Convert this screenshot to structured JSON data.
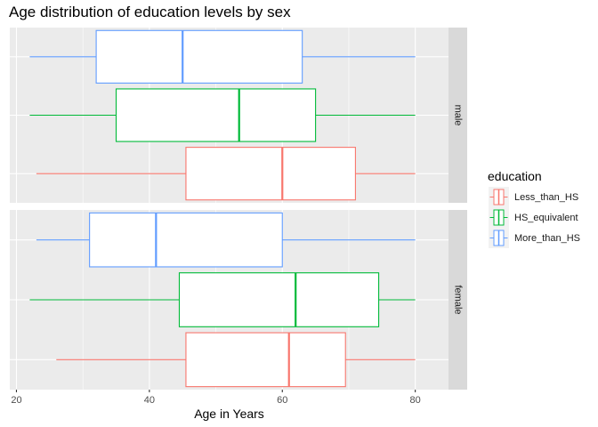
{
  "chart_data": {
    "type": "boxplot",
    "title": "Age distribution of education levels by sex",
    "xlabel": "Age in Years",
    "ylabel": "",
    "xlim": [
      19,
      85
    ],
    "x_ticks": [
      20,
      40,
      60,
      80
    ],
    "grid": true,
    "legend": {
      "title": "education",
      "position": "right",
      "entries": [
        "Less_than_HS",
        "HS_equivalent",
        "More_than_HS"
      ]
    },
    "colors": {
      "Less_than_HS": "#f8766d",
      "HS_equivalent": "#00ba38",
      "More_than_HS": "#619cff",
      "panel_background": "#ebebeb",
      "strip_background": "#d9d9d9",
      "grid_line": "#ffffff"
    },
    "facets": [
      {
        "label": "male",
        "boxes": [
          {
            "group": "More_than_HS",
            "min": 22,
            "q1": 32,
            "median": 45,
            "q3": 63,
            "max": 80
          },
          {
            "group": "HS_equivalent",
            "min": 22,
            "q1": 35,
            "median": 53.5,
            "q3": 65,
            "max": 80
          },
          {
            "group": "Less_than_HS",
            "min": 23,
            "q1": 45.5,
            "median": 60,
            "q3": 71,
            "max": 80
          }
        ]
      },
      {
        "label": "female",
        "boxes": [
          {
            "group": "More_than_HS",
            "min": 23,
            "q1": 31,
            "median": 41,
            "q3": 60,
            "max": 80
          },
          {
            "group": "HS_equivalent",
            "min": 22,
            "q1": 44.5,
            "median": 62,
            "q3": 74.5,
            "max": 80
          },
          {
            "group": "Less_than_HS",
            "min": 26,
            "q1": 45.5,
            "median": 61,
            "q3": 69.5,
            "max": 80
          }
        ]
      }
    ]
  }
}
